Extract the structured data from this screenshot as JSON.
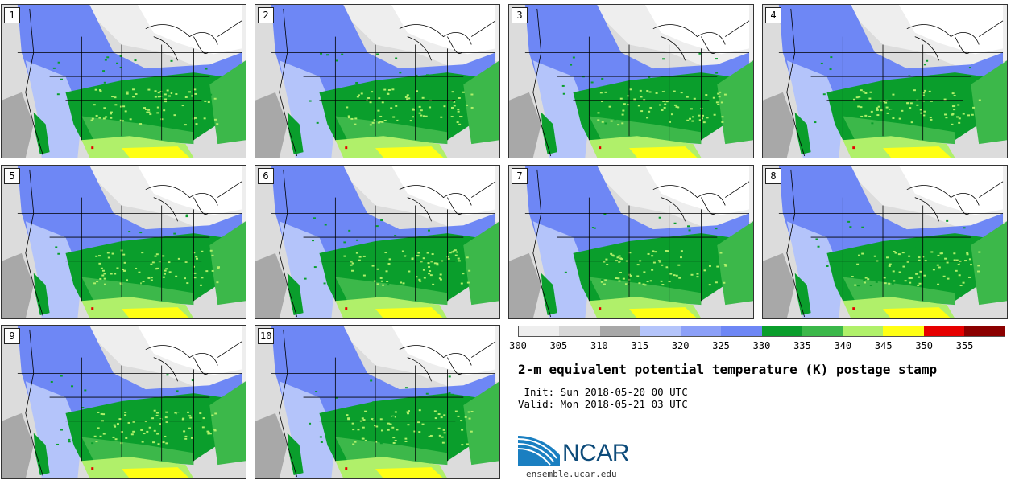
{
  "panels": [
    {
      "label": "1"
    },
    {
      "label": "2"
    },
    {
      "label": "3"
    },
    {
      "label": "4"
    },
    {
      "label": "5"
    },
    {
      "label": "6"
    },
    {
      "label": "7"
    },
    {
      "label": "8"
    },
    {
      "label": "9"
    },
    {
      "label": "10"
    }
  ],
  "colorbar": {
    "colors": [
      "#eeeeee",
      "#d8d8d8",
      "#a8a8a8",
      "#b4c4fa",
      "#8ca0f8",
      "#6e87f5",
      "#0a9e2c",
      "#3cb84a",
      "#b0f06a",
      "#ffff14",
      "#e60000",
      "#8b0000"
    ],
    "ticks": [
      "300",
      "305",
      "310",
      "315",
      "320",
      "325",
      "330",
      "335",
      "340",
      "345",
      "350",
      "355"
    ]
  },
  "title": "2-m equivalent potential temperature (K) postage stamp",
  "init_text": " Init: Sun 2018-05-20 00 UTC",
  "valid_text": "Valid: Mon 2018-05-21 03 UTC",
  "logo": {
    "name": "NCAR",
    "website": "ensemble.ucar.edu"
  }
}
